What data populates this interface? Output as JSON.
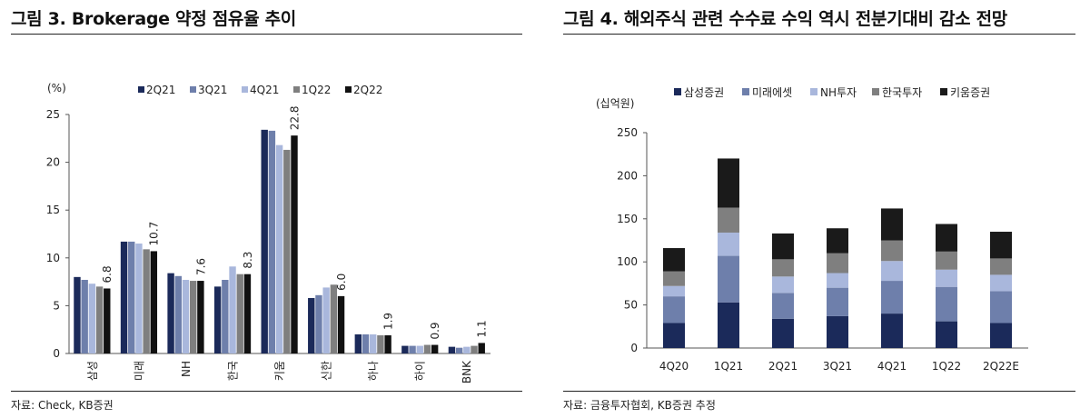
{
  "figures": [
    {
      "title": "그림 3. Brokerage 약정 점유율 추이",
      "source": "자료: Check, KB증권",
      "unit_label": "(%)"
    },
    {
      "title": "그림 4. 해외주식 관련 수수료 수익 역시 전분기대비 감소 전망",
      "source": "자료: 금융투자협회, KB증권 추정",
      "unit_label": "(십억원)"
    }
  ],
  "chart_data": [
    {
      "type": "bar",
      "title": "그림 3. Brokerage 약정 점유율 추이",
      "ylabel": "(%)",
      "ylim": [
        0,
        25
      ],
      "yticks": [
        0,
        5,
        10,
        15,
        20,
        25
      ],
      "grid": false,
      "legend": "top",
      "categories": [
        "삼성",
        "미래",
        "NH",
        "한국",
        "키움",
        "신한",
        "하나",
        "하이",
        "BNK"
      ],
      "series": [
        {
          "name": "2Q21",
          "color": "#1b2a5a",
          "values": [
            8.0,
            11.7,
            8.4,
            7.0,
            23.4,
            5.8,
            2.0,
            0.8,
            0.7
          ]
        },
        {
          "name": "3Q21",
          "color": "#6e7fab",
          "values": [
            7.7,
            11.7,
            8.1,
            7.7,
            23.3,
            6.1,
            2.0,
            0.8,
            0.6
          ]
        },
        {
          "name": "4Q21",
          "color": "#a9b7dc",
          "values": [
            7.3,
            11.5,
            7.7,
            9.1,
            21.8,
            6.9,
            2.0,
            0.8,
            0.7
          ]
        },
        {
          "name": "1Q22",
          "color": "#7f7f7f",
          "values": [
            7.0,
            10.9,
            7.6,
            8.3,
            21.3,
            7.2,
            1.9,
            0.9,
            0.8
          ]
        },
        {
          "name": "2Q22",
          "color": "#111111",
          "values": [
            6.8,
            10.7,
            7.6,
            8.3,
            22.8,
            6.0,
            1.9,
            0.9,
            1.1
          ]
        }
      ],
      "data_labels": [
        "6.8",
        "10.7",
        "7.6",
        "8.3",
        "22.8",
        "6.0",
        "1.9",
        "0.9",
        "1.1"
      ]
    },
    {
      "type": "bar",
      "stacked": true,
      "title": "그림 4. 해외주식 관련 수수료 수익 역시 전분기대비 감소 전망",
      "ylabel": "(십억원)",
      "ylim": [
        0,
        250
      ],
      "yticks": [
        0,
        50,
        100,
        150,
        200,
        250
      ],
      "grid": false,
      "legend": "top",
      "categories": [
        "4Q20",
        "1Q21",
        "2Q21",
        "3Q21",
        "4Q21",
        "1Q22",
        "2Q22E"
      ],
      "series": [
        {
          "name": "삼성증권",
          "color": "#1b2a5a",
          "values": [
            29,
            53,
            34,
            37,
            40,
            31,
            29
          ]
        },
        {
          "name": "미래에셋",
          "color": "#6e7fab",
          "values": [
            31,
            54,
            30,
            33,
            38,
            40,
            37
          ]
        },
        {
          "name": "NH투자",
          "color": "#a9b7dc",
          "values": [
            12,
            27,
            19,
            17,
            23,
            20,
            19
          ]
        },
        {
          "name": "한국투자",
          "color": "#7f7f7f",
          "values": [
            17,
            29,
            20,
            23,
            24,
            21,
            19
          ]
        },
        {
          "name": "키움증권",
          "color": "#1a1a1a",
          "values": [
            27,
            57,
            30,
            29,
            37,
            32,
            31
          ]
        }
      ]
    }
  ]
}
